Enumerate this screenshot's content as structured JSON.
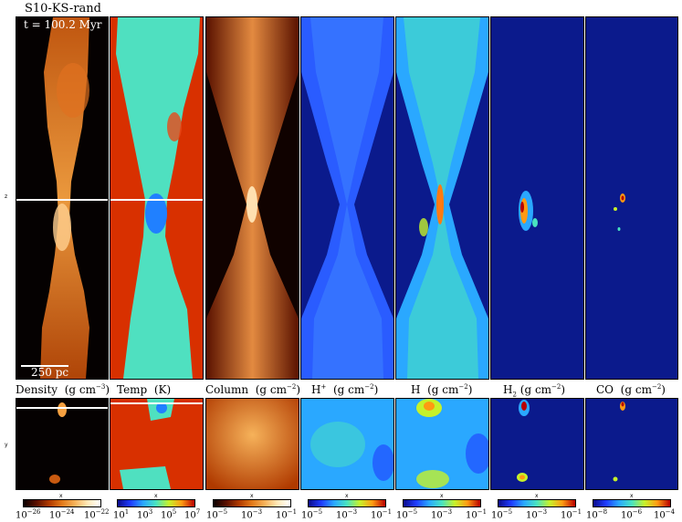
{
  "figure": {
    "run_name": "S10-KS-rand",
    "time_label": "t = 100.2 Myr",
    "scale_label": "250 pc",
    "axis_labels": {
      "z": "z",
      "y": "y",
      "x": "x"
    }
  },
  "panels": [
    {
      "id": "density",
      "title_main": "Density",
      "title_unit": "(g cm",
      "title_exp": "−3",
      "title_tail": ")",
      "colormap": "hot",
      "ticks": [
        {
          "base": "10",
          "exp": "−26"
        },
        {
          "base": "10",
          "exp": "−24"
        },
        {
          "base": "10",
          "exp": "−22"
        }
      ]
    },
    {
      "id": "temp",
      "title_main": "Temp",
      "title_unit": "(K)",
      "title_exp": "",
      "title_tail": "",
      "colormap": "jet",
      "ticks": [
        {
          "base": "10",
          "exp": "1"
        },
        {
          "base": "10",
          "exp": "3"
        },
        {
          "base": "10",
          "exp": "5"
        },
        {
          "base": "10",
          "exp": "7"
        }
      ]
    },
    {
      "id": "column",
      "title_main": "Column",
      "title_unit": "(g cm",
      "title_exp": "−2",
      "title_tail": ")",
      "colormap": "hot",
      "ticks": [
        {
          "base": "10",
          "exp": "−5"
        },
        {
          "base": "10",
          "exp": "−3"
        },
        {
          "base": "10",
          "exp": "−1"
        }
      ]
    },
    {
      "id": "hplus",
      "title_main": "H",
      "title_sup": "+",
      "title_unit": "(g cm",
      "title_exp": "−2",
      "title_tail": ")",
      "colormap": "jet",
      "ticks": [
        {
          "base": "10",
          "exp": "−5"
        },
        {
          "base": "10",
          "exp": "−3"
        },
        {
          "base": "10",
          "exp": "−1"
        }
      ]
    },
    {
      "id": "h",
      "title_main": "H",
      "title_unit": "(g cm",
      "title_exp": "−2",
      "title_tail": ")",
      "colormap": "jet",
      "ticks": [
        {
          "base": "10",
          "exp": "−5"
        },
        {
          "base": "10",
          "exp": "−3"
        },
        {
          "base": "10",
          "exp": "−1"
        }
      ]
    },
    {
      "id": "h2",
      "title_main": "H",
      "title_sub": "2",
      "title_unit": "(g cm",
      "title_exp": "−2",
      "title_tail": ")",
      "colormap": "jet",
      "ticks": [
        {
          "base": "10",
          "exp": "−5"
        },
        {
          "base": "10",
          "exp": "−3"
        },
        {
          "base": "10",
          "exp": "−1"
        }
      ]
    },
    {
      "id": "co",
      "title_main": "CO",
      "title_unit": "(g cm",
      "title_exp": "−2",
      "title_tail": ")",
      "colormap": "jet",
      "ticks": [
        {
          "base": "10",
          "exp": "−8"
        },
        {
          "base": "10",
          "exp": "−6"
        },
        {
          "base": "10",
          "exp": "−4"
        }
      ]
    }
  ],
  "colors": {
    "hot": [
      "#0a0000",
      "#5a0f00",
      "#b03a00",
      "#e37a1a",
      "#f6b25a",
      "#ffe9b8",
      "#ffffff"
    ],
    "jet": [
      "#0b0c8a",
      "#1f3cff",
      "#2aa8ff",
      "#49e3c0",
      "#c6f22a",
      "#ff9a12",
      "#b80000"
    ],
    "jet_background": "#0b1a8c",
    "black_background": "#050101"
  }
}
